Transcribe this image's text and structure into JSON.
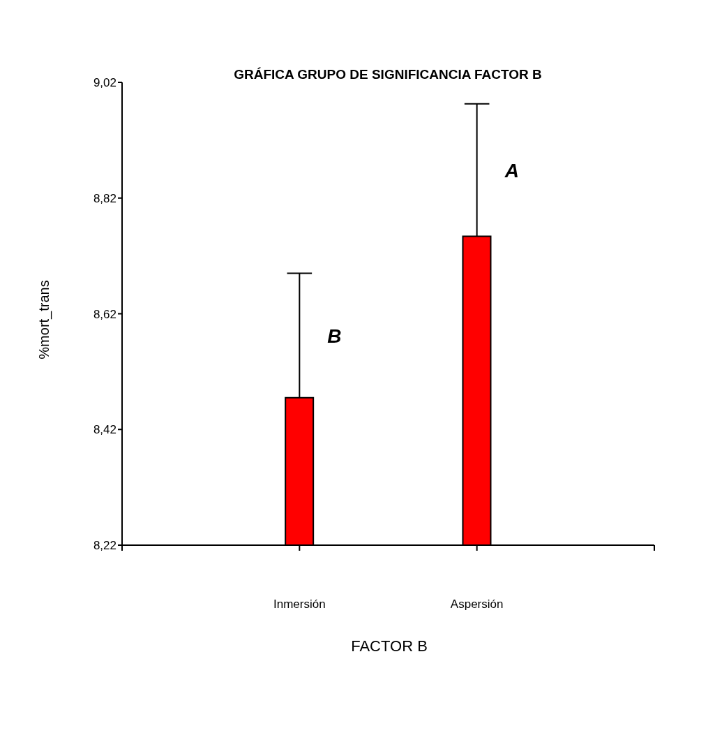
{
  "chart_data": {
    "type": "bar",
    "title": "GRÁFICA GRUPO DE SIGNIFICANCIA FACTOR B",
    "xlabel": "FACTOR B",
    "ylabel": "%mort_trans",
    "categories": [
      "Inmersión",
      "Aspersión"
    ],
    "values": [
      8.475,
      8.754
    ],
    "color": "#ff0000",
    "errors": [
      [
        8.475,
        8.69
      ],
      [
        8.754,
        8.983
      ]
    ],
    "ylim": [
      8.22,
      9.02
    ],
    "yticks": [
      {
        "value": 8.22,
        "label": "8,22"
      },
      {
        "value": 8.42,
        "label": "8,42"
      },
      {
        "value": 8.62,
        "label": "8,62"
      },
      {
        "value": 8.82,
        "label": "8,82"
      },
      {
        "value": 9.02,
        "label": "9,02"
      }
    ],
    "annotations": [
      "B",
      "A"
    ],
    "grid": false,
    "legend": false
  }
}
